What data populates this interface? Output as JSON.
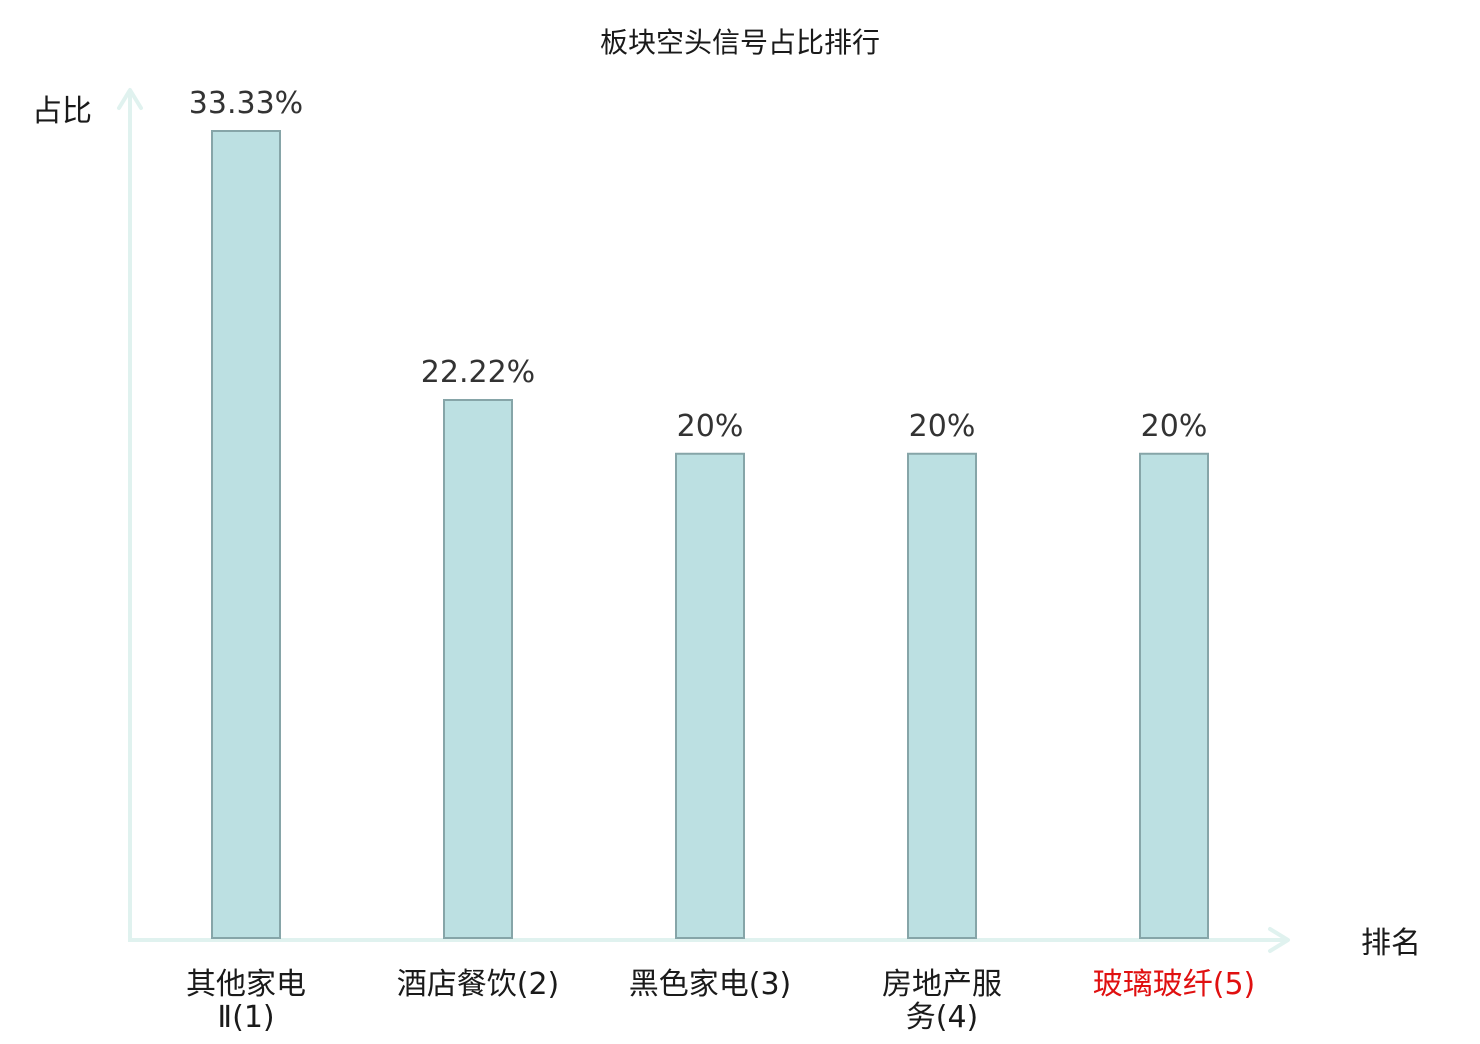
{
  "chart_data": {
    "type": "bar",
    "title": "板块空头信号占比排行",
    "ylabel": "占比",
    "xlabel": "排名",
    "categories": [
      {
        "lines": [
          "其他家电",
          "Ⅱ(1)"
        ],
        "highlight": false
      },
      {
        "lines": [
          "酒店餐饮(2)"
        ],
        "highlight": false
      },
      {
        "lines": [
          "黑色家电(3)"
        ],
        "highlight": false
      },
      {
        "lines": [
          "房地产服",
          "务(4)"
        ],
        "highlight": false
      },
      {
        "lines": [
          "玻璃玻纤(5)"
        ],
        "highlight": true
      }
    ],
    "values": [
      33.33,
      22.22,
      20,
      20,
      20
    ],
    "value_labels": [
      "33.33%",
      "22.22%",
      "20%",
      "20%",
      "20%"
    ],
    "ylim": [
      0,
      33.33
    ],
    "grid": false,
    "colors": {
      "bar_fill": "#bce0e2",
      "bar_stroke": "#86a5a8",
      "axis": "#e0f2ef",
      "text": "#1a1a1a",
      "value_label": "#333333",
      "highlight": "#e01010"
    }
  }
}
